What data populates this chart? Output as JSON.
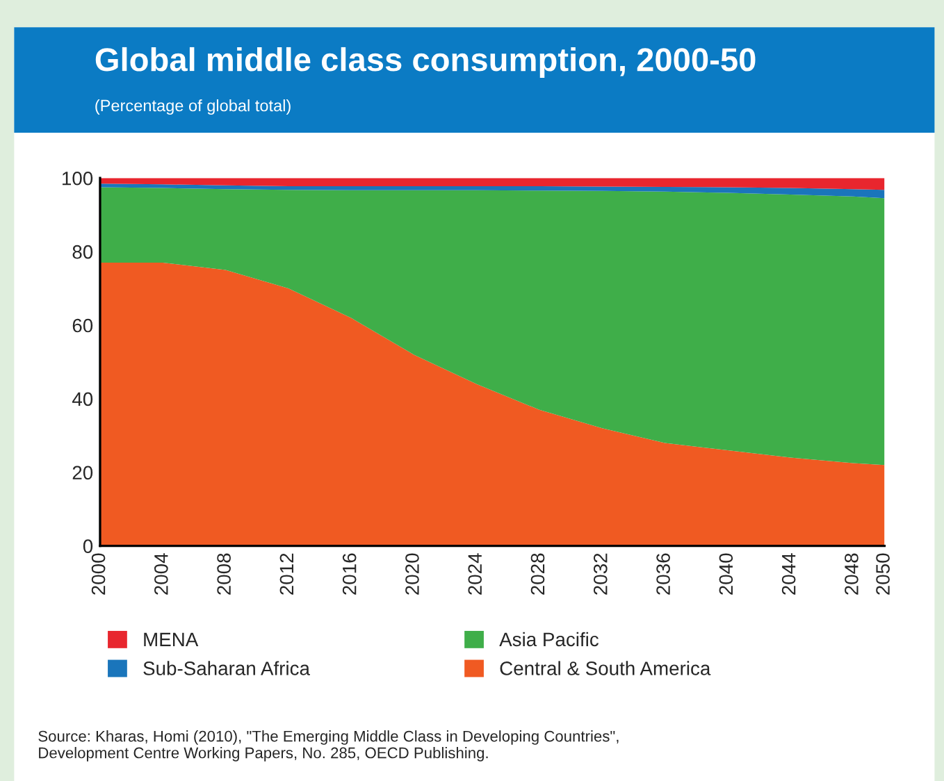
{
  "chart_data": {
    "type": "area",
    "stacked": true,
    "title": "Global middle class consumption, 2000-50",
    "subtitle": "(Percentage of global total)",
    "x": [
      2000,
      2004,
      2008,
      2012,
      2016,
      2020,
      2024,
      2028,
      2032,
      2036,
      2040,
      2044,
      2048,
      2050
    ],
    "series": [
      {
        "name": "Central & South America",
        "color": "#f05a22",
        "values": [
          77,
          77,
          75,
          70,
          62,
          52,
          44,
          37,
          32,
          28,
          26,
          24,
          22.5,
          22
        ]
      },
      {
        "name": "Asia Pacific",
        "color": "#3fae49",
        "values": [
          20.5,
          20.3,
          22,
          26.8,
          34.7,
          44.7,
          52.7,
          59.6,
          64.5,
          68.3,
          70,
          71.5,
          72.5,
          72.5
        ]
      },
      {
        "name": "Sub-Saharan Africa",
        "color": "#1a75bb",
        "values": [
          1,
          1,
          1,
          1,
          1.1,
          1.1,
          1.1,
          1.2,
          1.2,
          1.3,
          1.5,
          1.8,
          2,
          2.3
        ]
      },
      {
        "name": "MENA",
        "color": "#e8262e",
        "values": [
          1.5,
          1.7,
          2,
          2.2,
          2.2,
          2.2,
          2.2,
          2.2,
          2.3,
          2.4,
          2.5,
          2.7,
          3,
          3.2
        ]
      }
    ],
    "xlim": [
      2000,
      2050
    ],
    "xticks": [
      2000,
      2004,
      2008,
      2012,
      2016,
      2020,
      2024,
      2028,
      2032,
      2036,
      2040,
      2044,
      2048,
      2050
    ],
    "ylim": [
      0,
      100
    ],
    "yticks": [
      0,
      20,
      40,
      60,
      80,
      100
    ],
    "grid": false,
    "legend": "bottom",
    "annotations": [
      "Source: Kharas, Homi (2010), \"The Emerging Middle Class in Developing Countries\",\nDevelopment Centre Working Papers, No. 285, OECD Publishing."
    ]
  }
}
